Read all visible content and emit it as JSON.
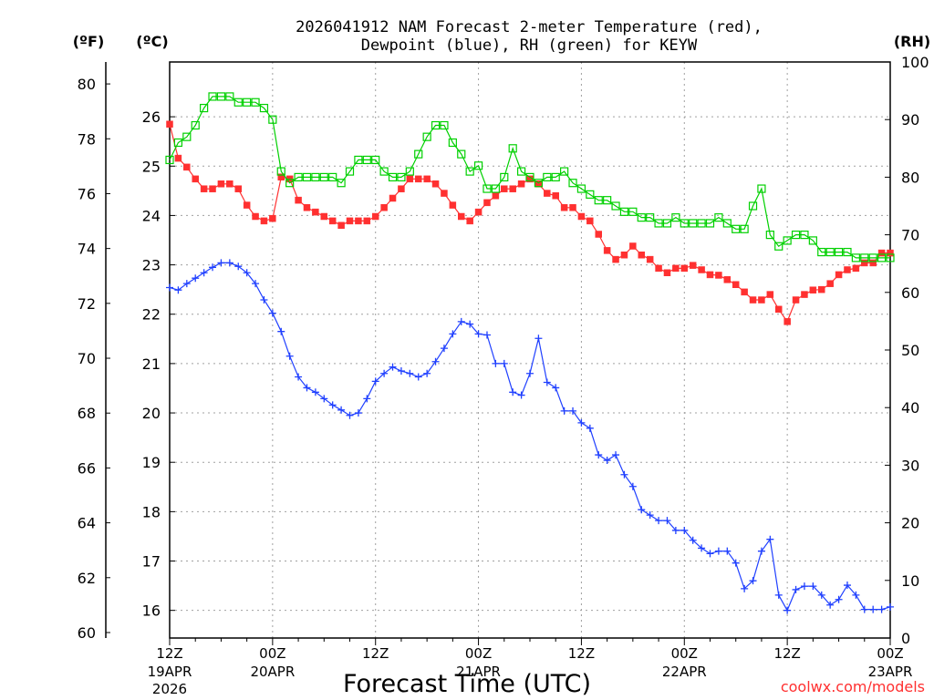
{
  "chart_data": {
    "type": "line",
    "title_line1": "2026041912 NAM Forecast 2-meter Temperature (red),",
    "title_line2": "Dewpoint (blue), RH (green) for KEYW",
    "xlabel": "Forecast Time (UTC)",
    "left_outer_unit": "(ºF)",
    "left_inner_unit": "(ºC)",
    "right_unit": "(RH)",
    "credit": "coolwx.com/models",
    "xlim": [
      0,
      84
    ],
    "x_ticks": [
      {
        "x": 0,
        "label": "12Z",
        "date": "19APR",
        "year": "2026"
      },
      {
        "x": 12,
        "label": "00Z",
        "date": "20APR",
        "year": ""
      },
      {
        "x": 24,
        "label": "12Z",
        "date": "",
        "year": ""
      },
      {
        "x": 36,
        "label": "00Z",
        "date": "21APR",
        "year": ""
      },
      {
        "x": 48,
        "label": "12Z",
        "date": "",
        "year": ""
      },
      {
        "x": 60,
        "label": "00Z",
        "date": "22APR",
        "year": ""
      },
      {
        "x": 72,
        "label": "12Z",
        "date": "",
        "year": ""
      },
      {
        "x": 84,
        "label": "00Z",
        "date": "23APR",
        "year": ""
      }
    ],
    "celsius_axis": {
      "range": [
        15.44,
        27.11
      ],
      "ticks": [
        16,
        17,
        18,
        19,
        20,
        21,
        22,
        23,
        24,
        25,
        26
      ]
    },
    "fahrenheit_axis": {
      "range": [
        59.8,
        80.8
      ],
      "ticks": [
        60,
        62,
        64,
        66,
        68,
        70,
        72,
        74,
        76,
        78,
        80
      ]
    },
    "rh_axis": {
      "range": [
        0,
        100
      ],
      "ticks": [
        0,
        10,
        20,
        30,
        40,
        50,
        60,
        70,
        80,
        90,
        100
      ]
    },
    "colors": {
      "temperature": "#ff3030",
      "dewpoint": "#2040ff",
      "rh": "#00d000",
      "credit": "#ff3030",
      "grid": "#a0a0a0"
    },
    "series": [
      {
        "key": "temperature",
        "axis": "celsius",
        "values": [
          25.85,
          25.16,
          24.98,
          24.74,
          24.54,
          24.54,
          24.64,
          24.64,
          24.54,
          24.21,
          23.98,
          23.89,
          23.94,
          24.78,
          24.74,
          24.31,
          24.16,
          24.07,
          23.98,
          23.89,
          23.8,
          23.89,
          23.89,
          23.89,
          23.98,
          24.16,
          24.35,
          24.54,
          24.74,
          24.74,
          24.74,
          24.64,
          24.45,
          24.21,
          23.98,
          23.89,
          24.07,
          24.26,
          24.4,
          24.54,
          24.54,
          24.64,
          24.74,
          24.64,
          24.45,
          24.4,
          24.16,
          24.16,
          23.98,
          23.89,
          23.62,
          23.29,
          23.11,
          23.2,
          23.38,
          23.2,
          23.11,
          22.93,
          22.84,
          22.93,
          22.93,
          22.99,
          22.9,
          22.8,
          22.79,
          22.7,
          22.6,
          22.45,
          22.29,
          22.29,
          22.4,
          22.1,
          21.85,
          22.29,
          22.4,
          22.49,
          22.5,
          22.62,
          22.8,
          22.9,
          22.93,
          23.04,
          23.04,
          23.24,
          23.24
        ]
      },
      {
        "key": "dewpoint",
        "axis": "celsius",
        "values": [
          22.54,
          22.49,
          22.62,
          22.73,
          22.84,
          22.95,
          23.04,
          23.04,
          22.97,
          22.84,
          22.62,
          22.29,
          22.02,
          21.65,
          21.15,
          20.73,
          20.51,
          20.42,
          20.29,
          20.16,
          20.06,
          19.95,
          20.0,
          20.29,
          20.64,
          20.8,
          20.93,
          20.85,
          20.8,
          20.73,
          20.8,
          21.04,
          21.31,
          21.6,
          21.85,
          21.8,
          21.6,
          21.58,
          21.0,
          21.0,
          20.42,
          20.36,
          20.8,
          21.51,
          20.62,
          20.51,
          20.04,
          20.04,
          19.8,
          19.69,
          19.15,
          19.04,
          19.15,
          18.75,
          18.51,
          18.04,
          17.93,
          17.82,
          17.82,
          17.62,
          17.62,
          17.42,
          17.26,
          17.15,
          17.2,
          17.2,
          16.96,
          16.44,
          16.6,
          17.2,
          17.44,
          16.31,
          16.0,
          16.42,
          16.49,
          16.49,
          16.31,
          16.11,
          16.22,
          16.51,
          16.31,
          16.02,
          16.02,
          16.02,
          16.07
        ]
      },
      {
        "key": "rh",
        "axis": "rh",
        "values": [
          83,
          86,
          87,
          89,
          92,
          94,
          94,
          94,
          93,
          93,
          93,
          92,
          90,
          81,
          79,
          80,
          80,
          80,
          80,
          80,
          79,
          81,
          83,
          83,
          83,
          81,
          80,
          80,
          81,
          84,
          87,
          89,
          89,
          86,
          84,
          81,
          82,
          78,
          78,
          80,
          85,
          81,
          80,
          79,
          80,
          80,
          81,
          79,
          78,
          77,
          76,
          76,
          75,
          74,
          74,
          73,
          73,
          72,
          72,
          73,
          72,
          72,
          72,
          72,
          73,
          72,
          71,
          71,
          75,
          78,
          70,
          68,
          69,
          70,
          70,
          69,
          67,
          67,
          67,
          67,
          66,
          66,
          66,
          66,
          66
        ]
      }
    ]
  }
}
